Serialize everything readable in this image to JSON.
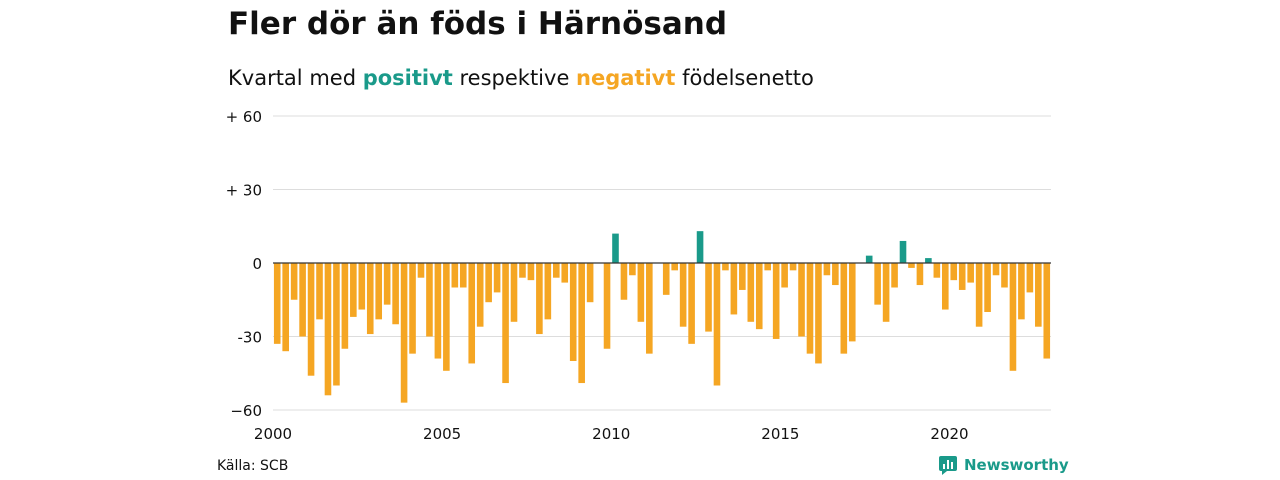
{
  "title": "Fler dör än föds i Härnösand",
  "subtitle": {
    "prefix": "Kvartal med ",
    "positive_word": "positivt",
    "middle": " respektive ",
    "negative_word": "negativt",
    "suffix": " födelsenetto"
  },
  "source": "Källa: SCB",
  "brand": "Newsworthy",
  "colors": {
    "positive": "#1a9a8a",
    "negative": "#f5a623",
    "grid": "#dddddd",
    "zero": "#333333"
  },
  "chart_data": {
    "type": "bar",
    "title": "Fler dör än föds i Härnösand",
    "xlabel": "",
    "ylabel": "",
    "ylim": [
      -60,
      60
    ],
    "yticks": [
      {
        "value": 60,
        "label": "+ 60"
      },
      {
        "value": 30,
        "label": "+ 30"
      },
      {
        "value": 0,
        "label": "0"
      },
      {
        "value": -30,
        "label": "-30"
      },
      {
        "value": -60,
        "label": "−60"
      }
    ],
    "xticks": [
      "2000",
      "2005",
      "2010",
      "2015",
      "2020"
    ],
    "period": "2000Q1-2022Q4",
    "grid": true,
    "values": [
      -33,
      -36,
      -15,
      -30,
      -46,
      -23,
      -54,
      -50,
      -35,
      -22,
      -19,
      -29,
      -23,
      -17,
      -25,
      -57,
      -37,
      -6,
      -30,
      -39,
      -44,
      -10,
      -10,
      -41,
      -26,
      -16,
      -12,
      -49,
      -24,
      -6,
      -7,
      -29,
      -23,
      -6,
      -8,
      -40,
      -49,
      -16,
      0,
      -35,
      12,
      -15,
      -5,
      -24,
      -37,
      0,
      -13,
      -3,
      -26,
      -33,
      13,
      -28,
      -50,
      -3,
      -21,
      -11,
      -24,
      -27,
      -3,
      -31,
      -10,
      -3,
      -30,
      -37,
      -41,
      -5,
      -9,
      -37,
      -32,
      0,
      3,
      -17,
      -24,
      -10,
      9,
      -2,
      -9,
      2,
      -6,
      -19,
      -7,
      -11,
      -8,
      -26,
      -20,
      -5,
      -10,
      -44,
      -23,
      -12,
      -26,
      -39
    ]
  }
}
